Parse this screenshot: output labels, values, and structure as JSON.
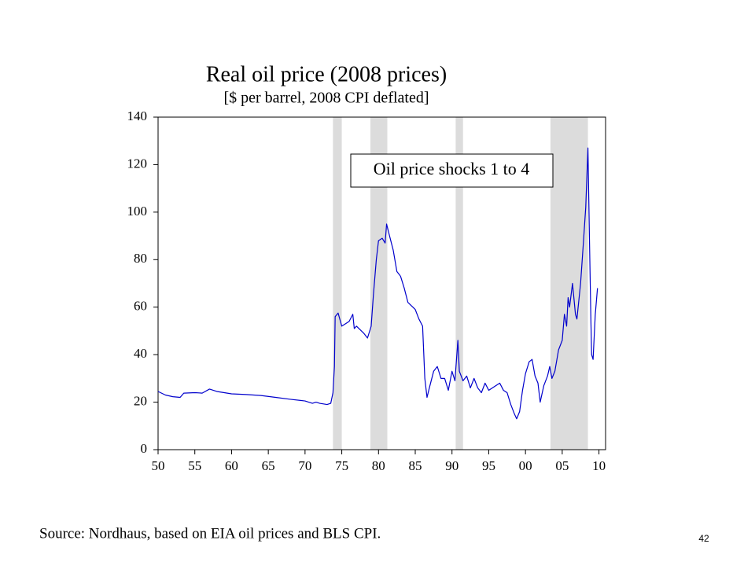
{
  "chart_data": {
    "type": "line",
    "title": "Real oil price (2008 prices)",
    "subtitle": "[$ per barrel, 2008 CPI deflated]",
    "annotation": "Oil price shocks 1 to 4",
    "source": "Source: Nordhaus, based on EIA oil prices and BLS CPI.",
    "page_number": "42",
    "xlim": [
      1950,
      2010.9
    ],
    "ylim": [
      0,
      140
    ],
    "yticks": [
      0,
      20,
      40,
      60,
      80,
      100,
      120,
      140
    ],
    "xticks": [
      {
        "value": 1950,
        "label": "50"
      },
      {
        "value": 1955,
        "label": "55"
      },
      {
        "value": 1960,
        "label": "60"
      },
      {
        "value": 1965,
        "label": "65"
      },
      {
        "value": 1970,
        "label": "70"
      },
      {
        "value": 1975,
        "label": "75"
      },
      {
        "value": 1980,
        "label": "80"
      },
      {
        "value": 1985,
        "label": "85"
      },
      {
        "value": 1990,
        "label": "90"
      },
      {
        "value": 1995,
        "label": "95"
      },
      {
        "value": 2000,
        "label": "00"
      },
      {
        "value": 2005,
        "label": "05"
      },
      {
        "value": 2010,
        "label": "10"
      }
    ],
    "shaded_periods": [
      [
        1973.8,
        1975
      ],
      [
        1978.9,
        1981.2
      ],
      [
        1990.5,
        1991.5
      ],
      [
        2003.4,
        2008.5
      ]
    ],
    "shade_color": "#dcdcdc",
    "x": [
      1950,
      1951,
      1952,
      1953,
      1953.5,
      1955,
      1956,
      1957,
      1958,
      1960,
      1962,
      1964,
      1966,
      1968,
      1970,
      1971,
      1971.5,
      1972,
      1973,
      1973.5,
      1973.8,
      1974,
      1974.1,
      1974.5,
      1975,
      1976,
      1976.5,
      1976.7,
      1977,
      1978,
      1978.5,
      1979,
      1979.3,
      1979.7,
      1980,
      1980.5,
      1980.9,
      1981.1,
      1981.5,
      1982,
      1982.5,
      1983,
      1983.5,
      1984,
      1985,
      1985.5,
      1986,
      1986.3,
      1986.6,
      1987,
      1987.5,
      1988,
      1988.5,
      1989,
      1989.5,
      1990,
      1990.4,
      1990.8,
      1991,
      1991.5,
      1992,
      1992.5,
      1993,
      1993.5,
      1994,
      1994.5,
      1995,
      1996,
      1996.5,
      1997,
      1997.5,
      1998,
      1998.5,
      1998.8,
      1999.2,
      1999.6,
      2000,
      2000.5,
      2000.9,
      2001.3,
      2001.7,
      2002,
      2002.5,
      2003,
      2003.3,
      2003.6,
      2004,
      2004.5,
      2005,
      2005.3,
      2005.6,
      2005.8,
      2006,
      2006.4,
      2006.8,
      2007,
      2007.5,
      2007.9,
      2008.2,
      2008.5,
      2008.7,
      2008.9,
      2009,
      2009.2,
      2009.5,
      2009.8
    ],
    "series": [
      {
        "color": "#0000cc",
        "values": [
          24.5,
          23,
          22.3,
          22,
          23.8,
          24,
          23.8,
          25.5,
          24.5,
          23.5,
          23.2,
          22.8,
          22,
          21.2,
          20.5,
          19.5,
          20,
          19.5,
          19,
          19.5,
          24,
          35,
          56,
          57.5,
          52,
          54,
          57,
          51,
          52,
          49,
          47,
          52,
          65,
          80,
          88,
          89,
          87,
          95,
          90,
          84,
          75,
          73,
          68,
          62,
          59,
          55,
          52,
          30,
          22,
          27,
          33,
          35,
          30,
          30,
          25,
          33,
          29,
          46,
          33,
          29,
          31,
          26,
          30,
          26,
          24,
          28,
          25,
          27,
          28,
          25,
          24,
          19,
          15,
          13,
          16,
          25,
          32,
          37,
          38,
          31,
          28,
          20,
          27,
          31,
          35,
          30,
          33,
          42,
          46,
          57,
          52,
          64,
          60,
          70,
          57,
          55,
          70,
          88,
          102,
          127,
          90,
          55,
          40,
          38,
          57,
          68
        ]
      }
    ]
  }
}
